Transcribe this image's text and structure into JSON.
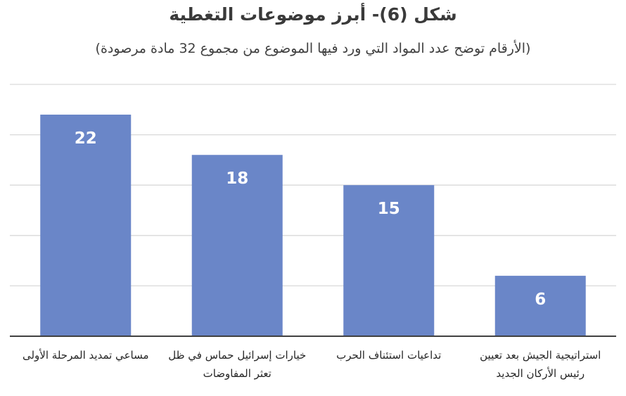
{
  "chart_data": {
    "type": "bar",
    "title": "شكل (6)- أبرز موضوعات التغطية",
    "subtitle": "(الأرقام توضح عدد المواد التي ورد فيها الموضوع من مجموع 32 مادة مرصودة)",
    "categories": [
      "مساعي تمديد المرحلة الأولى",
      "خيارات إسرائيل حماس في ظل تعثر المفاوضات",
      "تداعيات استئناف الحرب",
      "استراتيجية الجيش بعد تعيين رئيس الأركان الجديد"
    ],
    "values": [
      22,
      18,
      15,
      6
    ],
    "ylim": [
      0,
      25
    ],
    "grid": true,
    "bar_color": "#6a86c8",
    "gridline_color": "#d9d9d9",
    "axis_color": "#404040"
  }
}
